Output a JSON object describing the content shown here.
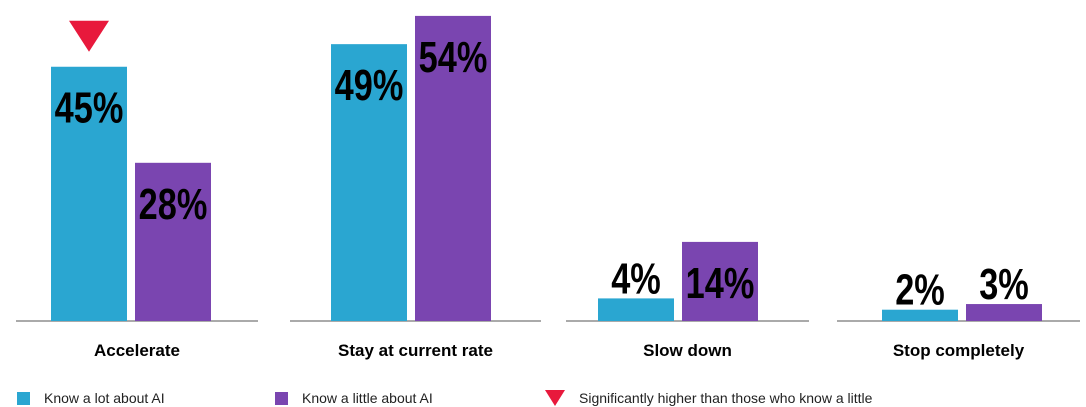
{
  "chart_data": {
    "type": "bar",
    "categories": [
      "Accelerate",
      "Stay at current rate",
      "Slow down",
      "Stop completely"
    ],
    "series": [
      {
        "name": "Know a lot about AI",
        "values": [
          45,
          49,
          4,
          2
        ],
        "labels": [
          "45%",
          "49%",
          "4%",
          "2%"
        ]
      },
      {
        "name": "Know a little about AI",
        "values": [
          28,
          54,
          14,
          3
        ],
        "labels": [
          "28%",
          "54%",
          "14%",
          "3%"
        ]
      }
    ],
    "significance": [
      {
        "category": "Accelerate",
        "series": "Know a lot about AI"
      }
    ],
    "ylim": [
      0,
      56
    ],
    "grid": false,
    "legend_position": "bottom-left",
    "colors": {
      "Know a lot about AI": "#2aa6d1",
      "Know a little about AI": "#7a45b0",
      "marker": "#e8193c"
    }
  },
  "legend": {
    "lot": "Know a lot about AI",
    "little": "Know a little about AI",
    "marker": "Significantly higher than those who know a little"
  }
}
